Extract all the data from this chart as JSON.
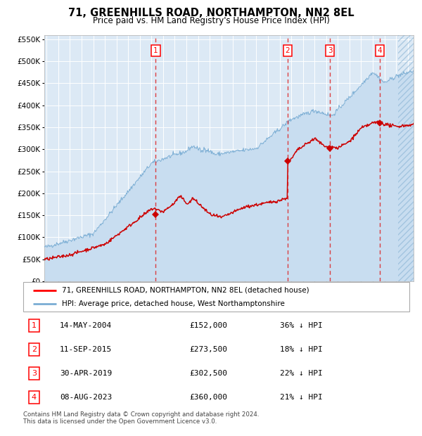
{
  "title": "71, GREENHILLS ROAD, NORTHAMPTON, NN2 8EL",
  "subtitle": "Price paid vs. HM Land Registry's House Price Index (HPI)",
  "legend_line1": "71, GREENHILLS ROAD, NORTHAMPTON, NN2 8EL (detached house)",
  "legend_line2": "HPI: Average price, detached house, West Northamptonshire",
  "footer1": "Contains HM Land Registry data © Crown copyright and database right 2024.",
  "footer2": "This data is licensed under the Open Government Licence v3.0.",
  "transactions": [
    {
      "num": 1,
      "date": "14-MAY-2004",
      "price": 152000,
      "pct": "36%",
      "x_year": 2004.37
    },
    {
      "num": 2,
      "date": "11-SEP-2015",
      "price": 273500,
      "pct": "18%",
      "x_year": 2015.69
    },
    {
      "num": 3,
      "date": "30-APR-2019",
      "price": 302500,
      "pct": "22%",
      "x_year": 2019.33
    },
    {
      "num": 4,
      "date": "08-AUG-2023",
      "price": 360000,
      "pct": "21%",
      "x_year": 2023.6
    }
  ],
  "hpi_fill_color": "#c8ddf0",
  "hpi_line_color": "#7aadd4",
  "price_color": "#cc0000",
  "marker_color": "#cc0000",
  "dashed_color": "#dd0000",
  "plot_bg": "#dce9f5",
  "grid_color": "#ffffff",
  "ylim": [
    0,
    560000
  ],
  "xlim_start": 1994.8,
  "xlim_end": 2026.5,
  "hatch_start": 2025.2
}
